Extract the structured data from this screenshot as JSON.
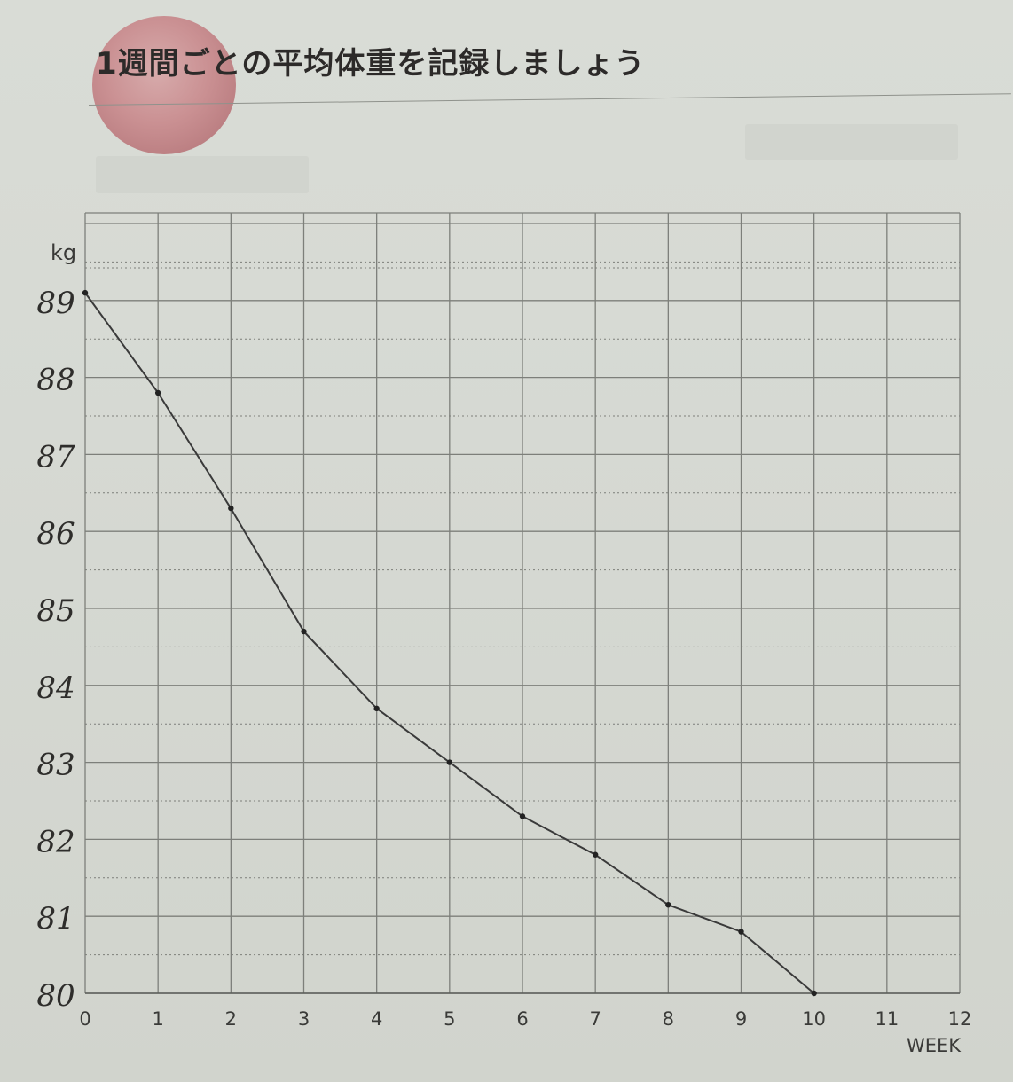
{
  "page": {
    "title": "1週間ごとの平均体重を記録しましょう"
  },
  "chart_data": {
    "type": "line",
    "title": "",
    "xlabel": "WEEK",
    "ylabel": "kg",
    "x": [
      0,
      1,
      2,
      3,
      4,
      5,
      6,
      7,
      8,
      9,
      10
    ],
    "series": [
      {
        "values": [
          89.1,
          87.8,
          86.3,
          84.7,
          83.7,
          83.0,
          82.3,
          81.8,
          81.15,
          80.8,
          80.0
        ]
      }
    ],
    "xlim": [
      0,
      12
    ],
    "ylim": [
      80,
      89.5
    ],
    "x_ticks": [
      "0",
      "1",
      "2",
      "3",
      "4",
      "5",
      "6",
      "7",
      "8",
      "9",
      "10",
      "11",
      "12"
    ],
    "y_ticks": [
      "89",
      "88",
      "87",
      "86",
      "85",
      "84",
      "83",
      "82",
      "81",
      "80"
    ],
    "grid": true,
    "line_color": "#3a3a3a",
    "grid_color": "#7d7f7a"
  }
}
